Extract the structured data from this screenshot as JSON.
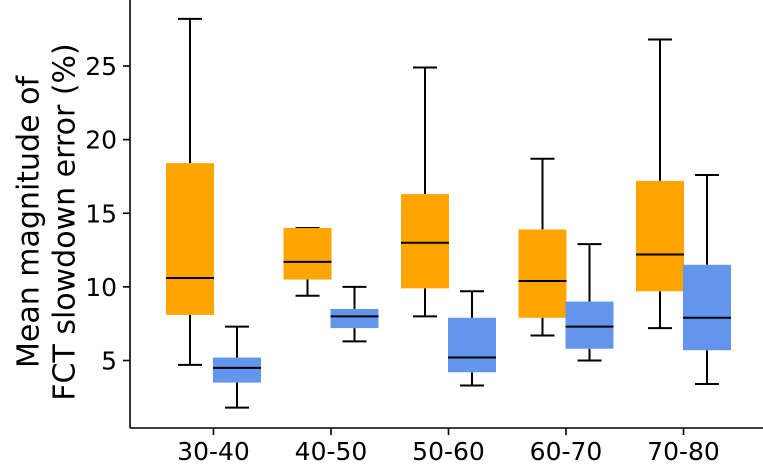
{
  "chart_data": {
    "type": "boxplot",
    "title": "",
    "xlabel": "",
    "ylabel_lines": [
      "Mean magnitude of",
      "FCT slowdown error (%)"
    ],
    "categories": [
      "30-40",
      "40-50",
      "50-60",
      "60-70",
      "70-80"
    ],
    "ylim": [
      0.5,
      29.0
    ],
    "yticks": [
      5,
      10,
      15,
      20,
      25
    ],
    "ytick_labels": [
      "5",
      "10",
      "15",
      "20",
      "25"
    ],
    "grid": false,
    "series": [
      {
        "name": "orange",
        "color": "#FFA500",
        "boxes": [
          {
            "whisker_low": 4.7,
            "q1": 8.1,
            "median": 10.6,
            "q3": 18.4,
            "whisker_high": 28.2
          },
          {
            "whisker_low": 9.4,
            "q1": 10.5,
            "median": 11.7,
            "q3": 14.0,
            "whisker_high": 14.0
          },
          {
            "whisker_low": 8.0,
            "q1": 9.9,
            "median": 13.0,
            "q3": 16.3,
            "whisker_high": 24.9
          },
          {
            "whisker_low": 6.7,
            "q1": 7.9,
            "median": 10.4,
            "q3": 13.9,
            "whisker_high": 18.7
          },
          {
            "whisker_low": 7.2,
            "q1": 9.7,
            "median": 12.2,
            "q3": 17.2,
            "whisker_high": 26.8
          }
        ]
      },
      {
        "name": "blue",
        "color": "#6495ED",
        "boxes": [
          {
            "whisker_low": 1.8,
            "q1": 3.5,
            "median": 4.5,
            "q3": 5.2,
            "whisker_high": 7.3
          },
          {
            "whisker_low": 6.3,
            "q1": 7.2,
            "median": 8.0,
            "q3": 8.5,
            "whisker_high": 10.0
          },
          {
            "whisker_low": 3.3,
            "q1": 4.2,
            "median": 5.2,
            "q3": 7.9,
            "whisker_high": 9.7
          },
          {
            "whisker_low": 5.0,
            "q1": 5.8,
            "median": 7.3,
            "q3": 9.0,
            "whisker_high": 12.9
          },
          {
            "whisker_low": 3.4,
            "q1": 5.7,
            "median": 7.9,
            "q3": 11.5,
            "whisker_high": 17.6
          }
        ]
      }
    ]
  }
}
